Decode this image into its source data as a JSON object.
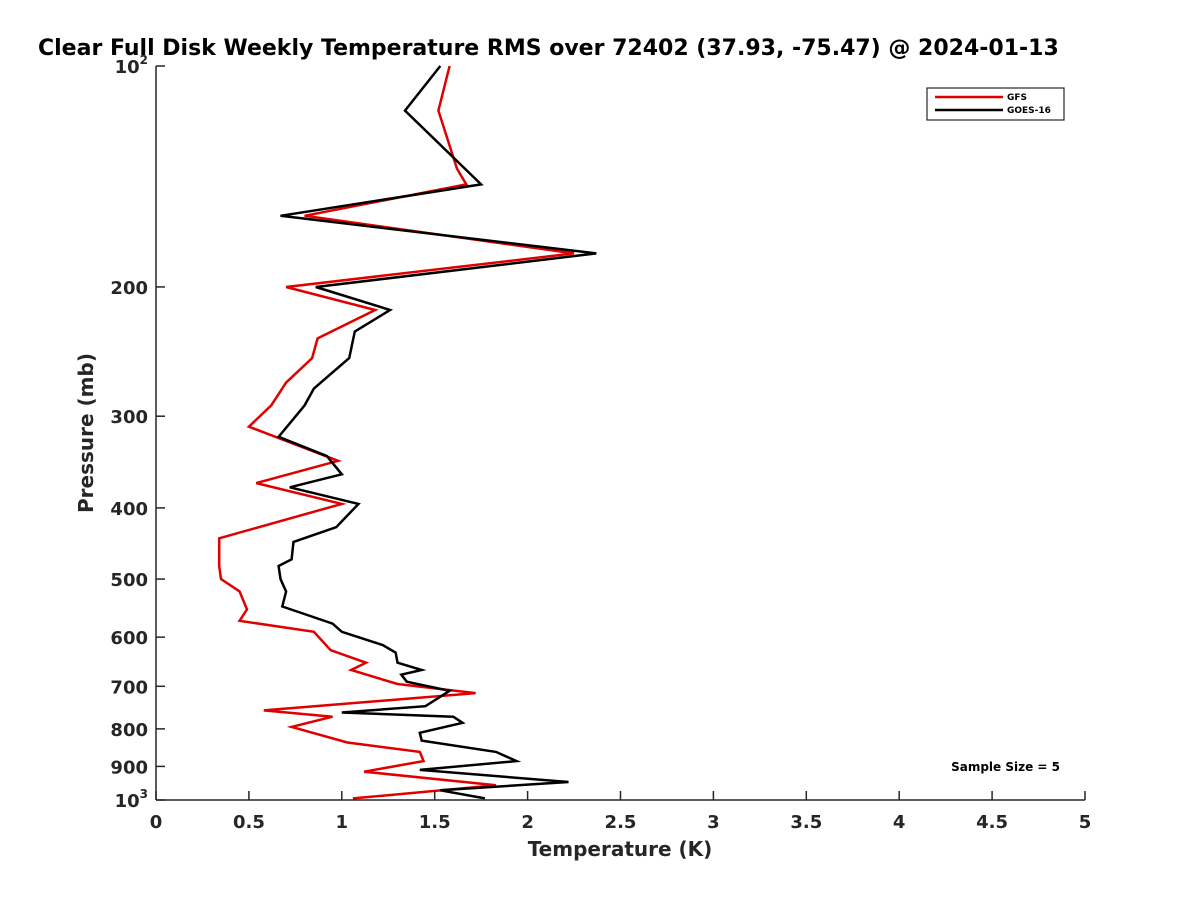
{
  "chart_data": {
    "type": "line",
    "title": "Clear Full Disk Weekly Temperature RMS over 72402 (37.93, -75.47) @ 2024-01-13",
    "xlabel": "Temperature (K)",
    "ylabel": "Pressure (mb)",
    "xlim": [
      0,
      5
    ],
    "ylim": [
      100,
      1000
    ],
    "y_scale": "log",
    "y_reversed": true,
    "x_ticks": [
      {
        "value": 0,
        "label": "0"
      },
      {
        "value": 0.5,
        "label": "0.5"
      },
      {
        "value": 1,
        "label": "1"
      },
      {
        "value": 1.5,
        "label": "1.5"
      },
      {
        "value": 2,
        "label": "2"
      },
      {
        "value": 2.5,
        "label": "2.5"
      },
      {
        "value": 3,
        "label": "3"
      },
      {
        "value": 3.5,
        "label": "3.5"
      },
      {
        "value": 4,
        "label": "4"
      },
      {
        "value": 4.5,
        "label": "4.5"
      },
      {
        "value": 5,
        "label": "5"
      }
    ],
    "y_ticks": [
      {
        "value": 100,
        "base": "10",
        "exp": "2"
      },
      {
        "value": 200,
        "label": "200"
      },
      {
        "value": 300,
        "label": "300"
      },
      {
        "value": 400,
        "label": "400"
      },
      {
        "value": 500,
        "label": "500"
      },
      {
        "value": 600,
        "label": "600"
      },
      {
        "value": 700,
        "label": "700"
      },
      {
        "value": 800,
        "label": "800"
      },
      {
        "value": 900,
        "label": "900"
      },
      {
        "value": 1000,
        "base": "10",
        "exp": "3"
      }
    ],
    "grid": false,
    "legend_position": "top-right",
    "annotation": "Sample Size = 5",
    "series": [
      {
        "name": "GFS",
        "color": "#e00000",
        "x": [
          1.58,
          1.52,
          1.62,
          1.67,
          0.8,
          2.25,
          0.7,
          1.18,
          0.87,
          0.84,
          0.7,
          0.62,
          0.5,
          0.98,
          0.54,
          1.0,
          0.34,
          0.34,
          0.35,
          0.45,
          0.49,
          0.45,
          0.85,
          0.94,
          1.13,
          1.05,
          1.3,
          1.72,
          0.58,
          0.95,
          0.73,
          1.03,
          1.42,
          1.44,
          1.12,
          1.83,
          1.06
        ],
        "y": [
          100,
          115,
          138,
          145,
          160,
          180,
          200,
          215,
          235,
          250,
          270,
          290,
          310,
          345,
          370,
          395,
          440,
          480,
          500,
          520,
          550,
          570,
          590,
          625,
          650,
          665,
          695,
          715,
          755,
          770,
          795,
          835,
          860,
          885,
          915,
          955,
          995
        ]
      },
      {
        "name": "GOES-16",
        "color": "#000000",
        "x": [
          1.53,
          1.34,
          1.75,
          0.67,
          2.37,
          0.86,
          1.26,
          1.07,
          1.04,
          0.85,
          0.8,
          0.66,
          0.92,
          1.0,
          0.72,
          1.09,
          0.97,
          0.74,
          0.73,
          0.66,
          0.67,
          0.7,
          0.68,
          0.95,
          1.0,
          1.22,
          1.29,
          1.3,
          1.43,
          1.32,
          1.35,
          1.58,
          1.45,
          1.0,
          1.6,
          1.65,
          1.42,
          1.43,
          1.83,
          1.94,
          1.42,
          2.22,
          1.53,
          1.77
        ],
        "y": [
          100,
          115,
          145,
          160,
          180,
          200,
          215,
          230,
          250,
          275,
          290,
          320,
          340,
          360,
          375,
          395,
          425,
          445,
          470,
          480,
          500,
          520,
          545,
          575,
          590,
          615,
          630,
          650,
          665,
          675,
          690,
          710,
          745,
          760,
          770,
          785,
          810,
          830,
          860,
          885,
          910,
          945,
          970,
          995
        ]
      }
    ]
  }
}
